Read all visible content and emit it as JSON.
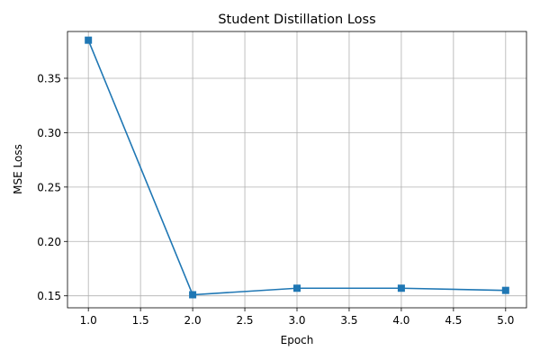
{
  "chart_data": {
    "type": "line",
    "title": "Student Distillation Loss",
    "xlabel": "Epoch",
    "ylabel": "MSE Loss",
    "x": [
      1.0,
      2.0,
      3.0,
      4.0,
      5.0
    ],
    "series": [
      {
        "values": [
          0.385,
          0.151,
          0.157,
          0.157,
          0.155
        ]
      }
    ],
    "xlim": [
      0.8,
      5.2
    ],
    "ylim": [
      0.139,
      0.393
    ],
    "xticks": [
      1.0,
      1.5,
      2.0,
      2.5,
      3.0,
      3.5,
      4.0,
      4.5,
      5.0
    ],
    "xtick_labels": [
      "1.0",
      "1.5",
      "2.0",
      "2.5",
      "3.0",
      "3.5",
      "4.0",
      "4.5",
      "5.0"
    ],
    "yticks": [
      0.15,
      0.2,
      0.25,
      0.3,
      0.35
    ],
    "ytick_labels": [
      "0.15",
      "0.20",
      "0.25",
      "0.30",
      "0.35"
    ],
    "grid": true,
    "marker": "square",
    "line_color": "#1f77b4"
  }
}
